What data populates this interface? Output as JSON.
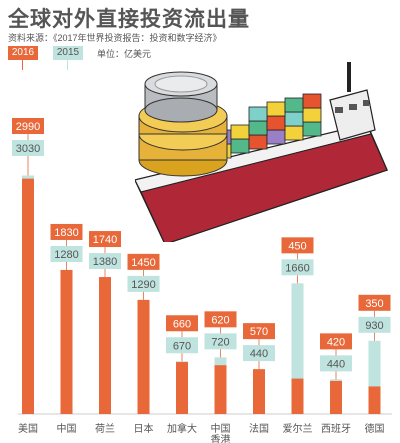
{
  "title": "全球对外直接投资流出量",
  "source": "资料来源：《2017年世界投资报告：投资和数字经济》",
  "unit": "单位：亿美元",
  "colors": {
    "y2016": "#e8683a",
    "y2015": "#bfe3df",
    "text": "#555555"
  },
  "chart_data": {
    "type": "bar",
    "categories": [
      "美国",
      "中国",
      "荷兰",
      "日本",
      "加拿大",
      "中国香港",
      "法国",
      "爱尔兰",
      "西班牙",
      "德国"
    ],
    "series": [
      {
        "name": "2016",
        "values": [
          2990,
          1830,
          1740,
          1450,
          660,
          620,
          570,
          450,
          420,
          350
        ]
      },
      {
        "name": "2015",
        "values": [
          3030,
          1280,
          1380,
          1290,
          670,
          720,
          440,
          1660,
          440,
          930
        ]
      }
    ],
    "ylim": [
      0,
      3100
    ]
  }
}
